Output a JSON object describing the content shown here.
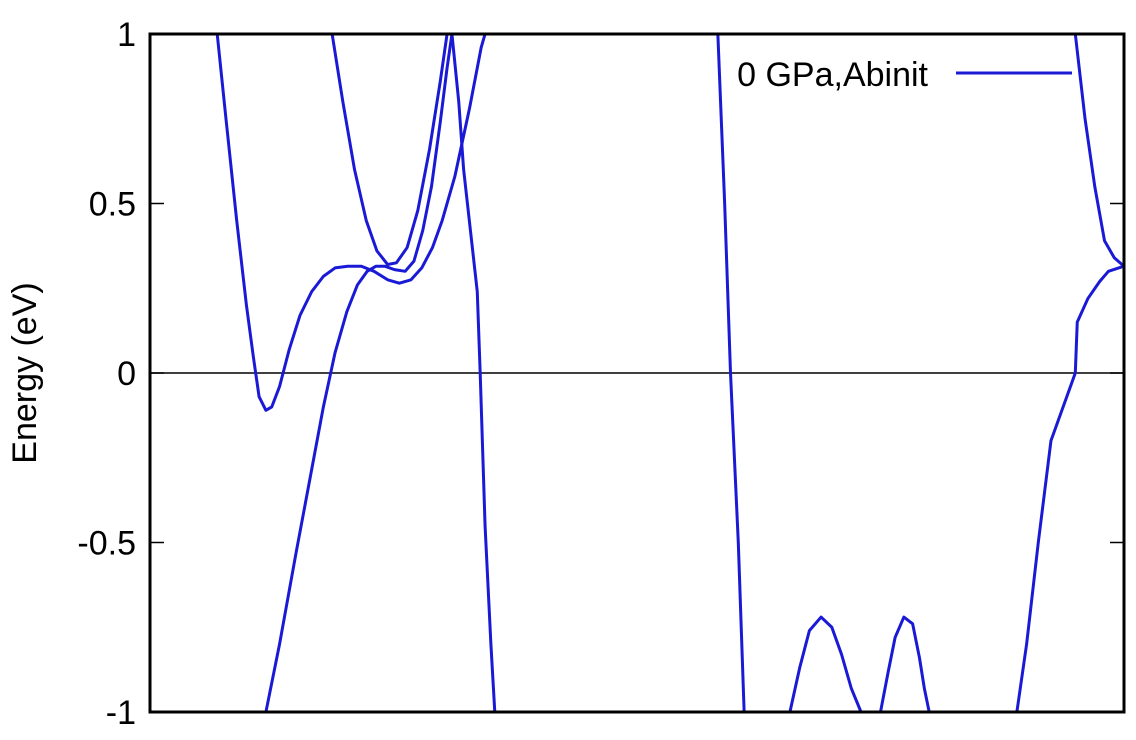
{
  "chart_data": {
    "type": "line",
    "ylabel": "Energy (eV)",
    "xlabel": "",
    "title": "",
    "ylim": [
      -1,
      1
    ],
    "xlim": [
      0,
      1
    ],
    "yticks": [
      {
        "value": -1,
        "label": "-1"
      },
      {
        "value": -0.5,
        "label": "-0.5"
      },
      {
        "value": 0,
        "label": "0"
      },
      {
        "value": 0.5,
        "label": "0.5"
      },
      {
        "value": 1,
        "label": "1"
      }
    ],
    "xtick_labels_visible": false,
    "zero_line": true,
    "grid": false,
    "legend": {
      "position": "top-right",
      "entries": [
        {
          "label": "0 GPa,Abinit",
          "color": "#1a1ad6"
        }
      ]
    },
    "series": [
      {
        "name": "0 GPa,Abinit",
        "color": "#1a1ad6",
        "segments": [
          [
            [
              0.069,
              1.0
            ],
            [
              0.078,
              0.75
            ],
            [
              0.089,
              0.45
            ],
            [
              0.099,
              0.2
            ],
            [
              0.106,
              0.05
            ],
            [
              0.112,
              -0.07
            ],
            [
              0.119,
              -0.11
            ],
            [
              0.125,
              -0.1
            ],
            [
              0.133,
              -0.04
            ],
            [
              0.143,
              0.07
            ],
            [
              0.154,
              0.17
            ],
            [
              0.166,
              0.24
            ],
            [
              0.178,
              0.285
            ],
            [
              0.19,
              0.31
            ],
            [
              0.203,
              0.315
            ],
            [
              0.217,
              0.315
            ],
            [
              0.23,
              0.3
            ],
            [
              0.244,
              0.275
            ],
            [
              0.256,
              0.265
            ],
            [
              0.268,
              0.275
            ],
            [
              0.279,
              0.31
            ],
            [
              0.29,
              0.37
            ],
            [
              0.3,
              0.45
            ],
            [
              0.313,
              0.58
            ],
            [
              0.328,
              0.78
            ],
            [
              0.34,
              0.96
            ],
            [
              0.344,
              1.0
            ]
          ],
          [
            [
              0.119,
              -1.0
            ],
            [
              0.133,
              -0.8
            ],
            [
              0.15,
              -0.53
            ],
            [
              0.165,
              -0.3
            ],
            [
              0.178,
              -0.1
            ],
            [
              0.19,
              0.06
            ],
            [
              0.202,
              0.18
            ],
            [
              0.213,
              0.26
            ],
            [
              0.223,
              0.3
            ],
            [
              0.232,
              0.315
            ],
            [
              0.241,
              0.315
            ],
            [
              0.251,
              0.305
            ],
            [
              0.262,
              0.3
            ],
            [
              0.271,
              0.33
            ],
            [
              0.28,
              0.42
            ],
            [
              0.289,
              0.55
            ],
            [
              0.298,
              0.74
            ],
            [
              0.305,
              0.9
            ],
            [
              0.31,
              1.0
            ]
          ],
          [
            [
              0.187,
              1.0
            ],
            [
              0.198,
              0.8
            ],
            [
              0.21,
              0.6
            ],
            [
              0.222,
              0.45
            ],
            [
              0.233,
              0.36
            ],
            [
              0.244,
              0.32
            ],
            [
              0.253,
              0.325
            ],
            [
              0.264,
              0.37
            ],
            [
              0.275,
              0.48
            ],
            [
              0.287,
              0.66
            ],
            [
              0.298,
              0.86
            ],
            [
              0.305,
              1.0
            ]
          ],
          [
            [
              0.31,
              1.0
            ],
            [
              0.317,
              0.8
            ],
            [
              0.322,
              0.6
            ],
            [
              0.329,
              0.42
            ],
            [
              0.336,
              0.24
            ],
            [
              0.339,
              0.0
            ],
            [
              0.344,
              -0.45
            ],
            [
              0.35,
              -0.8
            ],
            [
              0.354,
              -1.0
            ]
          ],
          [
            [
              0.583,
              1.0
            ],
            [
              0.59,
              0.5
            ],
            [
              0.596,
              0.0
            ],
            [
              0.604,
              -0.5
            ],
            [
              0.61,
              -1.0
            ]
          ],
          [
            [
              0.657,
              -1.0
            ],
            [
              0.667,
              -0.87
            ],
            [
              0.677,
              -0.76
            ],
            [
              0.689,
              -0.72
            ],
            [
              0.7,
              -0.75
            ],
            [
              0.71,
              -0.83
            ],
            [
              0.72,
              -0.93
            ],
            [
              0.73,
              -1.0
            ]
          ],
          [
            [
              0.75,
              -1.0
            ],
            [
              0.758,
              -0.88
            ],
            [
              0.765,
              -0.78
            ],
            [
              0.774,
              -0.72
            ],
            [
              0.783,
              -0.74
            ],
            [
              0.79,
              -0.84
            ],
            [
              0.795,
              -0.93
            ],
            [
              0.8,
              -1.0
            ]
          ],
          [
            [
              0.89,
              -1.0
            ],
            [
              0.9,
              -0.8
            ],
            [
              0.912,
              -0.5
            ],
            [
              0.925,
              -0.2
            ],
            [
              0.95,
              0.0
            ],
            [
              0.952,
              0.15
            ],
            [
              0.963,
              0.22
            ],
            [
              0.975,
              0.27
            ],
            [
              0.984,
              0.3
            ],
            [
              1.0,
              0.315
            ]
          ],
          [
            [
              0.95,
              1.0
            ],
            [
              0.96,
              0.75
            ],
            [
              0.97,
              0.55
            ],
            [
              0.98,
              0.39
            ],
            [
              0.99,
              0.34
            ],
            [
              1.0,
              0.315
            ]
          ]
        ]
      }
    ]
  }
}
